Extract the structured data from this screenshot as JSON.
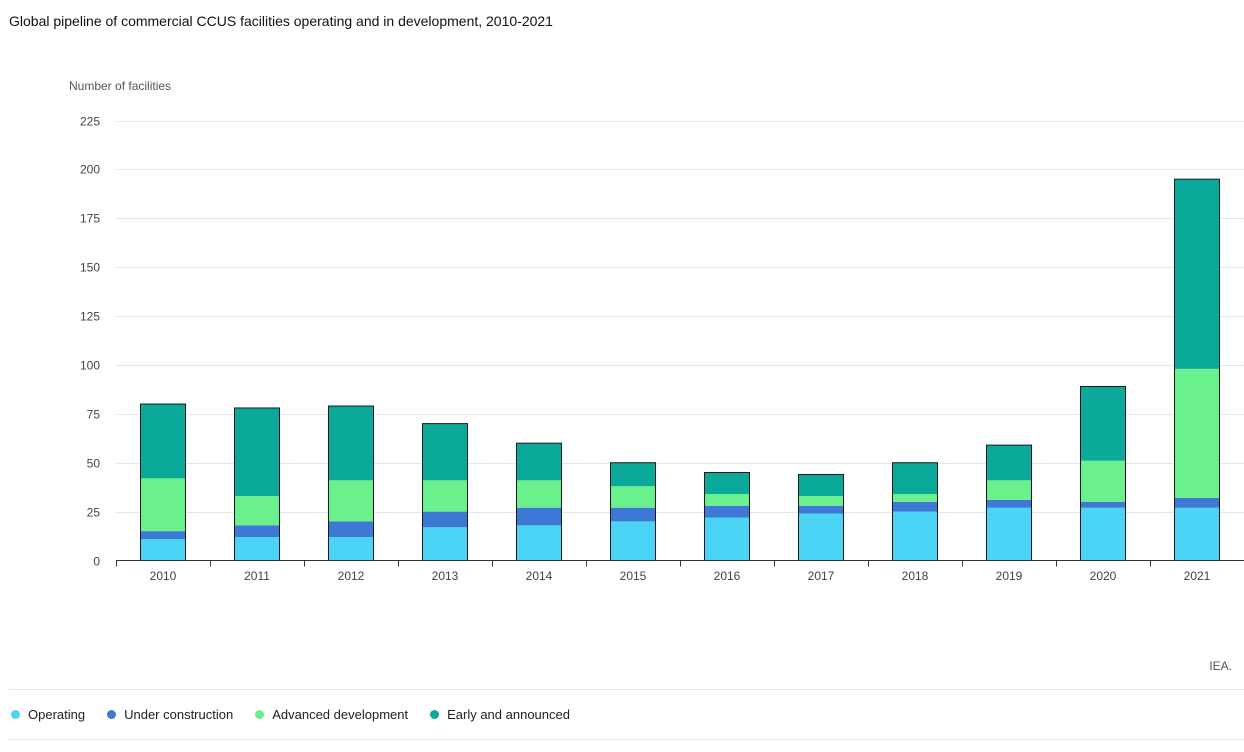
{
  "title": "Global pipeline of commercial CCUS facilities operating and in development, 2010-2021",
  "source": "IEA.",
  "colors": {
    "operating": "#4cd4f7",
    "under_construction": "#3c78d4",
    "advanced_development": "#6bf08e",
    "early_and_announced": "#0aa999",
    "gridline": "#e6e6e6",
    "axis": "#333333"
  },
  "legend": [
    {
      "label": "Operating",
      "color": "#4cd4f7"
    },
    {
      "label": "Under construction",
      "color": "#3c78d4"
    },
    {
      "label": "Advanced development",
      "color": "#6bf08e"
    },
    {
      "label": "Early and announced",
      "color": "#0aa999"
    }
  ],
  "chart_data": {
    "type": "bar",
    "stacked": true,
    "title": "Global pipeline of commercial CCUS facilities operating and in development, 2010-2021",
    "xlabel": "",
    "ylabel": "Number of facilities",
    "ylim": [
      0,
      225
    ],
    "yticks": [
      0,
      25,
      50,
      75,
      100,
      125,
      150,
      175,
      200,
      225
    ],
    "grid": true,
    "legend_position": "bottom",
    "categories": [
      "2010",
      "2011",
      "2012",
      "2013",
      "2014",
      "2015",
      "2016",
      "2017",
      "2018",
      "2019",
      "2020",
      "2021"
    ],
    "series": [
      {
        "name": "Operating",
        "color": "#4cd4f7",
        "values": [
          11,
          12,
          12,
          17,
          18,
          20,
          22,
          24,
          25,
          27,
          27,
          27
        ]
      },
      {
        "name": "Under construction",
        "color": "#3c78d4",
        "values": [
          4,
          6,
          8,
          8,
          9,
          7,
          6,
          4,
          5,
          4,
          3,
          5
        ]
      },
      {
        "name": "Advanced development",
        "color": "#6bf08e",
        "values": [
          27,
          15,
          21,
          16,
          14,
          11,
          6,
          5,
          4,
          10,
          21,
          66
        ]
      },
      {
        "name": "Early and announced",
        "color": "#0aa999",
        "values": [
          38,
          45,
          38,
          29,
          19,
          12,
          11,
          11,
          16,
          18,
          38,
          97
        ]
      }
    ]
  }
}
